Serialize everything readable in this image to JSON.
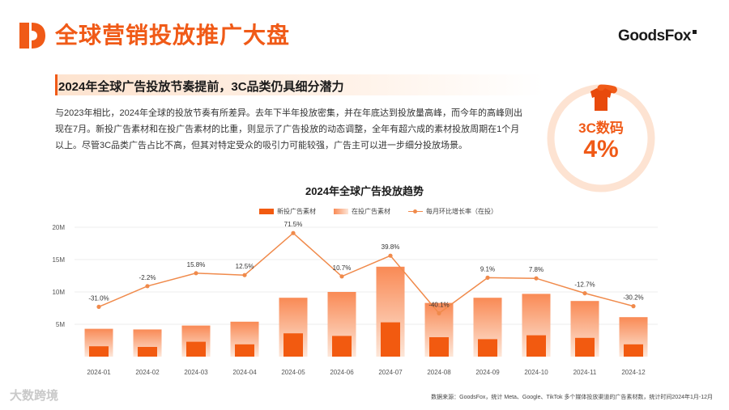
{
  "header": {
    "title": "全球营销投放推广大盘",
    "brand": "GoodsFox"
  },
  "section": {
    "subtitle": "2024年全球广告投放节奏提前，3C品类仍具细分潜力",
    "description": "与2023年相比，2024年全球的投放节奏有所差异。去年下半年投放密集，并在年底达到投放量高峰，而今年的高峰则出现在7月。新投广告素材和在投广告素材的比重，则显示了广告投放的动态调整，全年有超六成的素材投放周期在1个月以上。尽管3C品类广告占比不高，但其对特定受众的吸引力可能较强，广告主可以进一步细分投放场景。"
  },
  "kpi": {
    "label": "3C数码",
    "value": "4%",
    "fraction": 0.04
  },
  "footer": {
    "source": "数据来源：GoodsFox，统计 Meta、Google、TikTok 多个媒体投放渠道的广告素材数，统计时间2024年1月-12月",
    "watermark": "大数跨境"
  },
  "colors": {
    "accent": "#f05a17",
    "new_bar": "#f25a10",
    "active_bar_top": "#f98a55",
    "active_bar_bottom": "#fde6d8",
    "line": "#f08a4b",
    "axis_text": "#555555",
    "grid": "#e6e6e6"
  },
  "chart_data": {
    "type": "bar",
    "title": "2024年全球广告投放趋势",
    "categories": [
      "2024-01",
      "2024-02",
      "2024-03",
      "2024-04",
      "2024-05",
      "2024-06",
      "2024-07",
      "2024-08",
      "2024-09",
      "2024-10",
      "2024-11",
      "2024-12"
    ],
    "y_ticks": [
      "20M",
      "15M",
      "10M",
      "5M"
    ],
    "ylim": [
      0,
      20000000
    ],
    "grid": true,
    "legend_position": "top-center",
    "series": [
      {
        "name": "新投广告素材",
        "kind": "bar",
        "values": [
          1600000,
          1500000,
          2300000,
          1900000,
          3600000,
          3200000,
          5300000,
          3000000,
          2700000,
          3300000,
          2900000,
          1900000
        ]
      },
      {
        "name": "在投广告素材",
        "kind": "bar",
        "values": [
          4300000,
          4200000,
          4800000,
          5400000,
          9100000,
          10000000,
          13900000,
          8300000,
          9100000,
          9700000,
          8600000,
          6100000
        ]
      },
      {
        "name": "每月环比增长率（在投）",
        "kind": "line",
        "values": [
          7700000,
          10900000,
          12900000,
          12600000,
          19100000,
          12400000,
          15600000,
          6700000,
          12200000,
          12100000,
          9800000,
          7800000
        ]
      }
    ],
    "data_labels": [
      "-31.0%",
      "-2.2%",
      "15.8%",
      "12.5%",
      "71.5%",
      "10.7%",
      "39.8%",
      "-40.1%",
      "9.1%",
      "7.8%",
      "-12.7%",
      "-30.2%"
    ]
  }
}
